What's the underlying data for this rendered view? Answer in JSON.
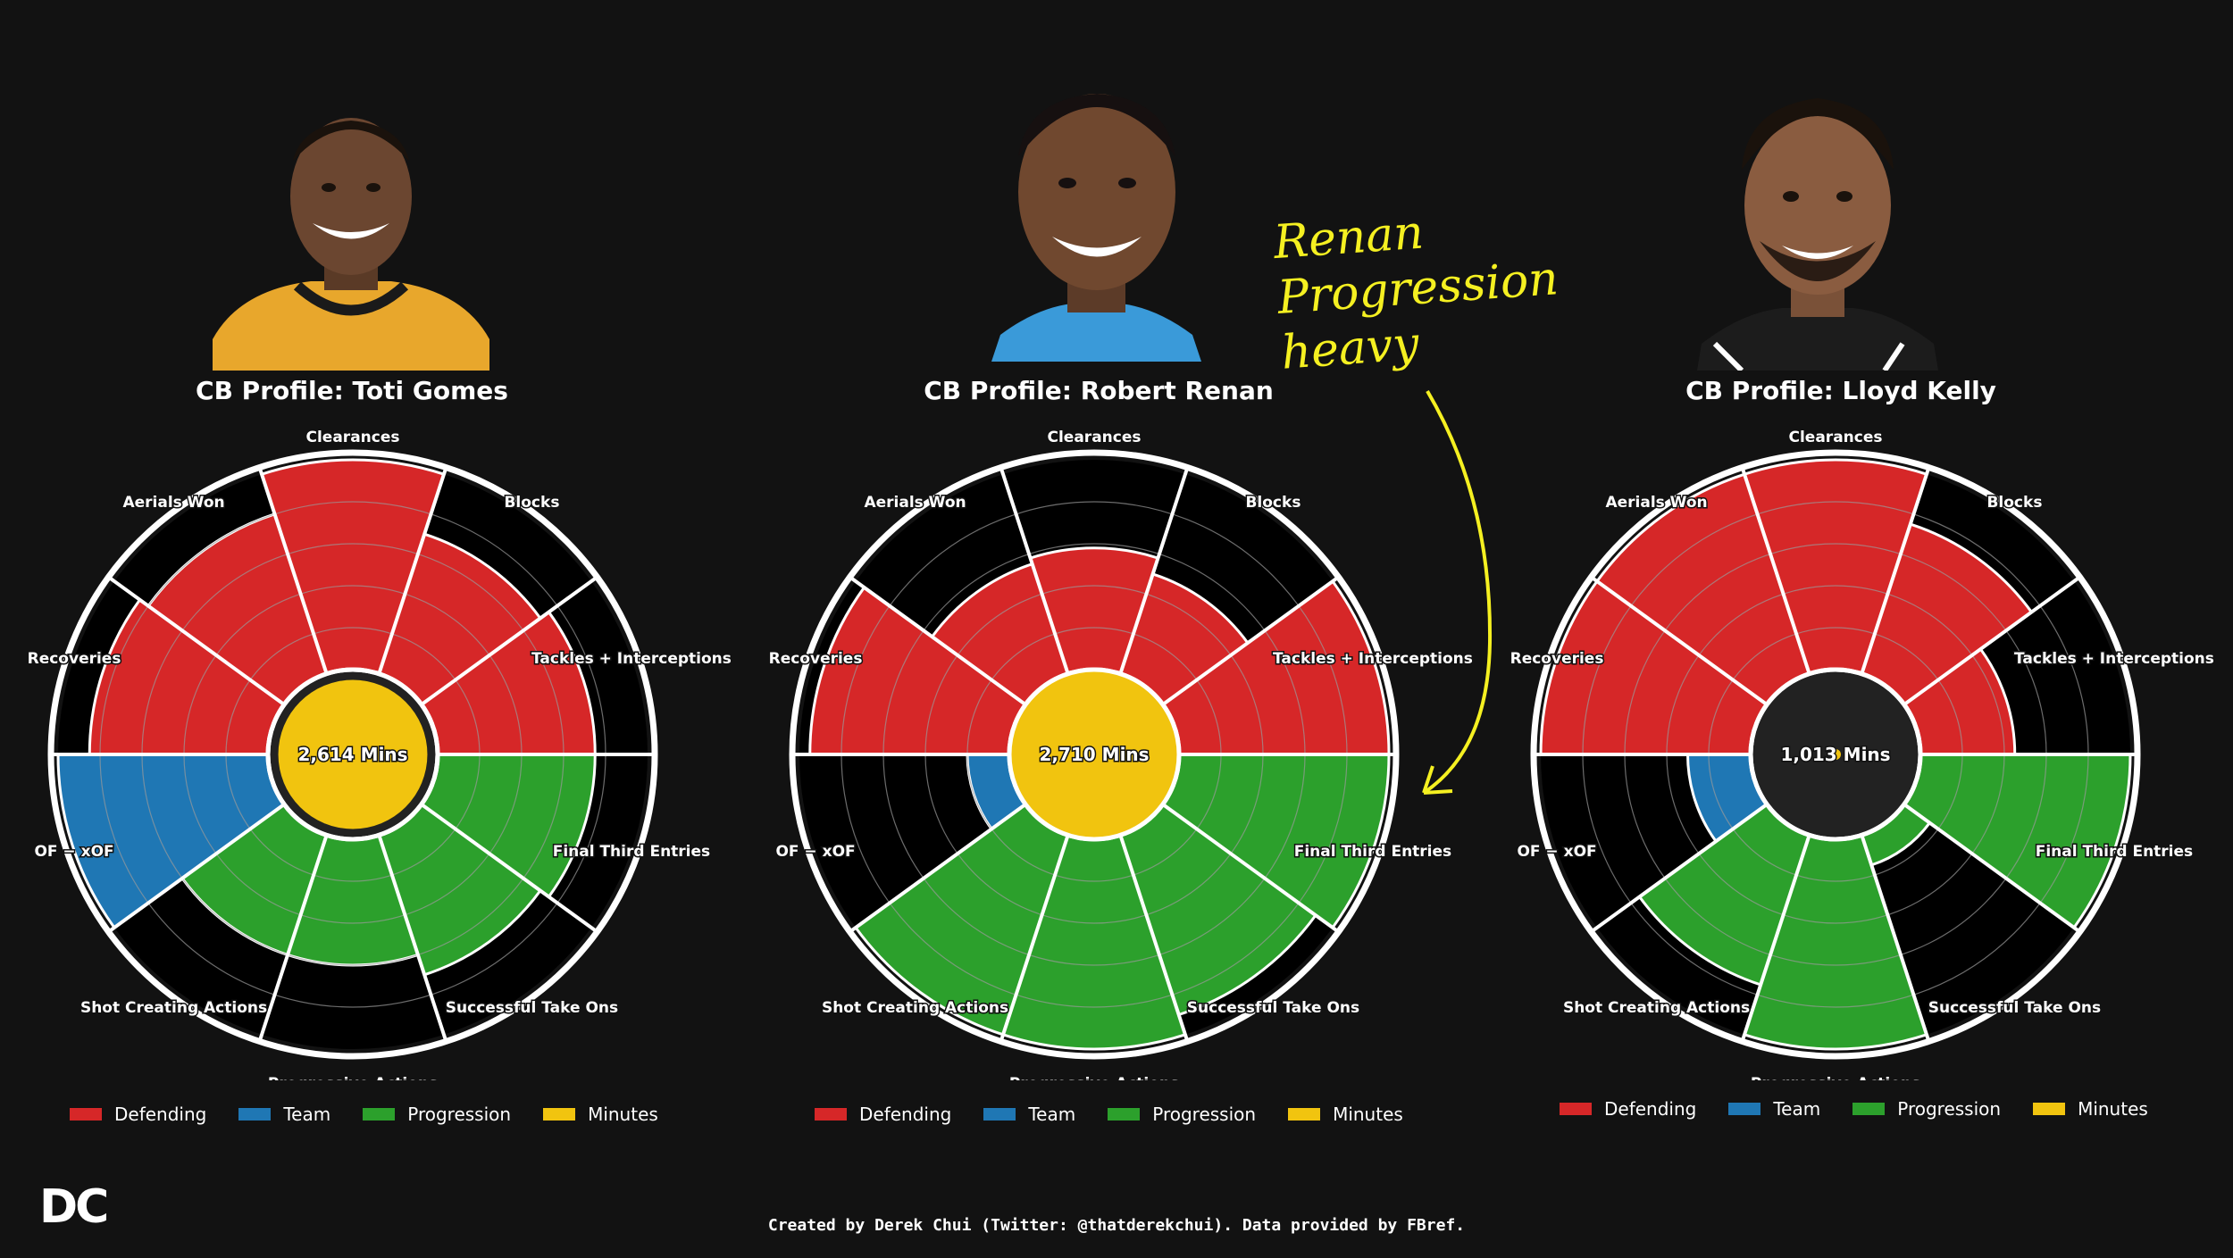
{
  "credit": "Created by Derek Chui (Twitter: @thatderekchui). Data provided by FBref.",
  "logo": "DC",
  "annotation": {
    "lines": [
      "Renan",
      "Progression",
      "heavy"
    ],
    "color": "#f5f021"
  },
  "colors": {
    "defending": "#d62728",
    "team": "#1f77b4",
    "progression": "#2ca02c",
    "minutes": "#f1c40f",
    "background": "#121212",
    "ring": "#ffffff"
  },
  "legend": [
    "Defending",
    "Team",
    "Progression",
    "Minutes"
  ],
  "chart_data": [
    {
      "type": "radial-bar",
      "title": "CB Profile: Toti Gomes",
      "center_label": "2,614 Mins",
      "minutes": 2614,
      "scale_max": 100,
      "categories": [
        "Clearances",
        "Blocks",
        "Tackles + Interceptions",
        "Final Third Entries",
        "Successful Take Ons",
        "Progressive Actions",
        "Shot Creating Actions",
        "OF − xOF",
        "Recoveries",
        "Aerials Won"
      ],
      "groups": [
        "Defending",
        "Defending",
        "Defending",
        "Progression",
        "Progression",
        "Progression",
        "Progression",
        "Team",
        "Defending",
        "Defending"
      ],
      "values": [
        100,
        70,
        75,
        75,
        70,
        60,
        60,
        100,
        85,
        80
      ]
    },
    {
      "type": "radial-bar",
      "title": "CB Profile: Robert Renan",
      "center_label": "2,710 Mins",
      "minutes": 2710,
      "scale_max": 100,
      "categories": [
        "Clearances",
        "Blocks",
        "Tackles + Interceptions",
        "Final Third Entries",
        "Successful Take Ons",
        "Progressive Actions",
        "Shot Creating Actions",
        "OF − xOF",
        "Recoveries",
        "Aerials Won"
      ],
      "groups": [
        "Defending",
        "Defending",
        "Defending",
        "Progression",
        "Progression",
        "Progression",
        "Progression",
        "Team",
        "Defending",
        "Defending"
      ],
      "values": [
        58,
        50,
        100,
        100,
        90,
        100,
        100,
        20,
        95,
        55
      ]
    },
    {
      "type": "radial-bar",
      "title": "CB Profile: Lloyd Kelly",
      "center_label": "1,013 Mins",
      "minutes": 1013,
      "scale_max": 100,
      "categories": [
        "Clearances",
        "Blocks",
        "Tackles + Interceptions",
        "Final Third Entries",
        "Successful Take Ons",
        "Progressive Actions",
        "Shot Creating Actions",
        "OF − xOF",
        "Recoveries",
        "Aerials Won"
      ],
      "groups": [
        "Defending",
        "Defending",
        "Defending",
        "Progression",
        "Progression",
        "Progression",
        "Progression",
        "Team",
        "Defending",
        "Defending"
      ],
      "values": [
        100,
        75,
        45,
        100,
        15,
        100,
        75,
        30,
        100,
        100
      ]
    }
  ]
}
